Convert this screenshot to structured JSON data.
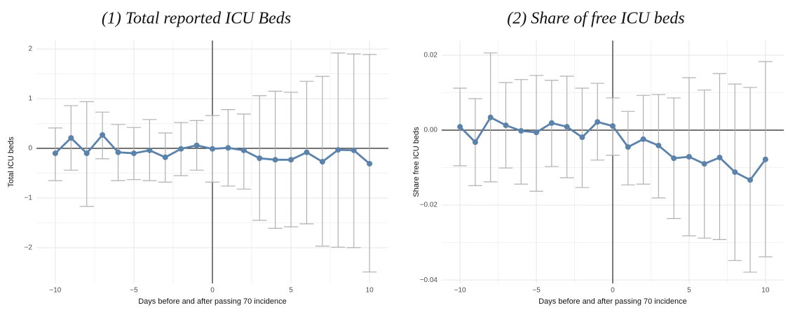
{
  "chart_data": [
    {
      "type": "line",
      "title": "(1) Total reported ICU Beds",
      "x_label": "Days before and after passing 70 incidence",
      "y_label": "Total ICU beds",
      "color": "#5a82ab",
      "error_color": "#b0b0b0",
      "grid": true,
      "hline": 0,
      "vline": 0,
      "x": [
        -10,
        -9,
        -8,
        -7,
        -6,
        -5,
        -4,
        -3,
        -2,
        -1,
        0,
        1,
        2,
        3,
        4,
        5,
        6,
        7,
        8,
        9,
        10
      ],
      "values": [
        -0.1,
        0.21,
        -0.1,
        0.27,
        -0.08,
        -0.1,
        -0.04,
        -0.18,
        -0.01,
        0.06,
        -0.01,
        0.01,
        -0.04,
        -0.2,
        -0.23,
        -0.23,
        -0.08,
        -0.27,
        -0.03,
        -0.04,
        -0.31
      ],
      "lower": [
        -0.65,
        -0.44,
        -1.17,
        -0.21,
        -0.65,
        -0.63,
        -0.65,
        -0.68,
        -0.55,
        -0.44,
        -0.68,
        -0.76,
        -0.82,
        -1.45,
        -1.61,
        -1.58,
        -1.52,
        -1.97,
        -1.99,
        -2.0,
        -2.49
      ],
      "upper": [
        0.41,
        0.86,
        0.94,
        0.73,
        0.48,
        0.42,
        0.58,
        0.31,
        0.52,
        0.56,
        0.66,
        0.78,
        0.69,
        1.06,
        1.15,
        1.13,
        1.35,
        1.45,
        1.92,
        1.9,
        1.89
      ],
      "xlim": [
        -11.2,
        11.2
      ],
      "ylim": [
        -2.72,
        2.17
      ],
      "xticks": [
        {
          "value": -10,
          "label": "−10"
        },
        {
          "value": -5,
          "label": "−5"
        },
        0,
        5,
        10
      ],
      "yticks": [
        {
          "value": -2,
          "label": "−2"
        },
        {
          "value": -1,
          "label": "−1"
        },
        0,
        1,
        2
      ]
    },
    {
      "type": "line",
      "title": "(2) Share of free ICU beds",
      "x_label": "Days before and after passing 70 incidence",
      "y_label": "Share free ICU beds",
      "color": "#5a82ab",
      "error_color": "#b0b0b0",
      "grid": true,
      "hline": 0,
      "vline": 0,
      "x": [
        -10,
        -9,
        -8,
        -7,
        -6,
        -5,
        -4,
        -3,
        -2,
        -1,
        0,
        1,
        2,
        3,
        4,
        5,
        6,
        7,
        8,
        9,
        10
      ],
      "values": [
        0.0009,
        -0.0032,
        0.0034,
        0.0013,
        -0.0002,
        -0.0006,
        0.0019,
        0.0009,
        -0.0019,
        0.0022,
        0.0011,
        -0.0045,
        -0.0024,
        -0.0041,
        -0.0075,
        -0.0071,
        -0.009,
        -0.0073,
        -0.0112,
        -0.0133,
        -0.0078
      ],
      "lower": [
        -0.0095,
        -0.0148,
        -0.0138,
        -0.0101,
        -0.0144,
        -0.0163,
        -0.0097,
        -0.0127,
        -0.0153,
        -0.008,
        -0.0067,
        -0.0146,
        -0.0144,
        -0.0181,
        -0.0236,
        -0.0282,
        -0.0288,
        -0.0292,
        -0.0348,
        -0.0379,
        -0.0338
      ],
      "upper": [
        0.0112,
        0.0084,
        0.0206,
        0.0127,
        0.0135,
        0.0146,
        0.0133,
        0.0144,
        0.0112,
        0.0125,
        0.0086,
        0.005,
        0.0093,
        0.0095,
        0.0086,
        0.014,
        0.0107,
        0.0151,
        0.0123,
        0.0114,
        0.0183
      ],
      "xlim": [
        -11.2,
        11.2
      ],
      "ylim": [
        -0.0409,
        0.0239
      ],
      "xticks": [
        {
          "value": -10,
          "label": "−10"
        },
        {
          "value": -5,
          "label": "−5"
        },
        0,
        5,
        10
      ],
      "yticks": [
        {
          "value": -0.04,
          "label": "−0.04"
        },
        {
          "value": -0.02,
          "label": "−0.02"
        },
        {
          "value": 0,
          "label": "0.00"
        },
        0.02
      ]
    }
  ]
}
